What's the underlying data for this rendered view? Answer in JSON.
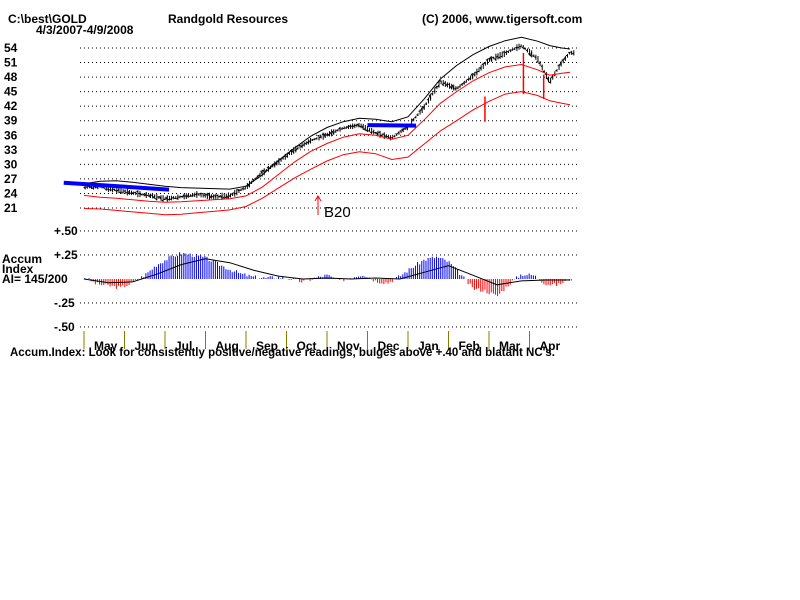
{
  "header": {
    "path": "C:\\best\\GOLD",
    "date_range": "4/3/2007-4/9/2008",
    "company": "Randgold Resources",
    "copyright": "(C) 2006, www.tigersoft.com"
  },
  "accum_label": {
    "line1": "Accum",
    "line2": "Index",
    "line3": "AI= 145/200"
  },
  "caption": "Accum.Index: Look for consistently positive/negative readings, bulges above +.40 and blatant NC's.",
  "colors": {
    "price_bar": "#000000",
    "band": "#ff0000",
    "trendline": "#0000ff",
    "accum_positive": "#0000ff",
    "accum_negative": "#ff0000",
    "grid": "#000000",
    "month_tick": "#808000"
  },
  "chart_data": [
    {
      "type": "line",
      "title": "Randgold Resources",
      "subtitle": "4/3/2007-4/9/2008",
      "xlabel": "",
      "ylabel": "",
      "x_ticks": [
        "May",
        "Jun",
        "Jul",
        "Aug",
        "Sep",
        "Oct",
        "Nov",
        "Dec",
        "Jan",
        "Feb",
        "Mar",
        "Apr"
      ],
      "y_ticks": [
        21,
        24,
        27,
        30,
        33,
        36,
        39,
        42,
        45,
        48,
        51,
        54
      ],
      "ylim": [
        21,
        55
      ],
      "grid": true,
      "annotation": {
        "label": "B20",
        "month": "Sep"
      },
      "series": [
        {
          "points": [
            [
              0.0,
              25.3
            ],
            [
              0.4,
              25.4
            ],
            [
              0.8,
              24.7
            ],
            [
              1.2,
              24.1
            ],
            [
              1.6,
              23.6
            ],
            [
              2.0,
              22.9
            ],
            [
              2.4,
              23.3
            ],
            [
              2.8,
              23.8
            ],
            [
              3.2,
              23.3
            ],
            [
              3.6,
              23.5
            ],
            [
              4.0,
              25.3
            ],
            [
              4.4,
              28.2
            ],
            [
              4.8,
              30.5
            ],
            [
              5.2,
              33.0
            ],
            [
              5.6,
              34.9
            ],
            [
              6.0,
              36.1
            ],
            [
              6.4,
              37.5
            ],
            [
              6.8,
              38.1
            ],
            [
              7.2,
              36.5
            ],
            [
              7.6,
              35.4
            ],
            [
              8.0,
              37.8
            ],
            [
              8.4,
              41.8
            ],
            [
              8.8,
              47.0
            ],
            [
              9.2,
              45.6
            ],
            [
              9.6,
              48.2
            ],
            [
              10.0,
              51.5
            ],
            [
              10.4,
              52.9
            ],
            [
              10.8,
              54.5
            ],
            [
              11.2,
              51.8
            ],
            [
              11.5,
              47.0
            ],
            [
              11.8,
              51.0
            ],
            [
              12.0,
              53.0
            ]
          ]
        },
        {
          "points": [
            [
              0.0,
              20.9
            ],
            [
              0.4,
              20.8
            ],
            [
              0.8,
              20.5
            ],
            [
              1.2,
              20.2
            ],
            [
              1.6,
              19.9
            ],
            [
              2.0,
              19.6
            ],
            [
              2.4,
              19.7
            ],
            [
              2.8,
              20.0
            ],
            [
              3.2,
              20.3
            ],
            [
              3.6,
              20.6
            ],
            [
              4.0,
              21.3
            ],
            [
              4.4,
              23.0
            ],
            [
              4.8,
              25.1
            ],
            [
              5.2,
              27.2
            ],
            [
              5.6,
              29.0
            ],
            [
              6.0,
              30.7
            ],
            [
              6.4,
              32.0
            ],
            [
              6.8,
              32.6
            ],
            [
              7.2,
              32.2
            ],
            [
              7.6,
              31.0
            ],
            [
              8.0,
              31.5
            ],
            [
              8.4,
              34.2
            ],
            [
              8.8,
              36.9
            ],
            [
              9.2,
              39.0
            ],
            [
              9.6,
              41.2
            ],
            [
              10.0,
              43.0
            ],
            [
              10.4,
              44.5
            ],
            [
              10.8,
              45.0
            ],
            [
              11.2,
              44.2
            ],
            [
              11.5,
              43.1
            ],
            [
              11.8,
              42.6
            ],
            [
              12.0,
              42.3
            ]
          ]
        },
        {
          "points": [
            [
              0.0,
              26.0
            ],
            [
              0.4,
              26.5
            ],
            [
              0.8,
              26.6
            ],
            [
              1.2,
              26.3
            ],
            [
              1.6,
              25.9
            ],
            [
              2.0,
              25.5
            ],
            [
              2.4,
              25.2
            ],
            [
              2.8,
              25.1
            ],
            [
              3.2,
              25.0
            ],
            [
              3.6,
              24.9
            ],
            [
              4.0,
              25.5
            ],
            [
              4.4,
              27.8
            ],
            [
              4.8,
              30.8
            ],
            [
              5.2,
              33.4
            ],
            [
              5.6,
              35.8
            ],
            [
              6.0,
              37.6
            ],
            [
              6.4,
              38.8
            ],
            [
              6.8,
              39.5
            ],
            [
              7.2,
              39.3
            ],
            [
              7.6,
              38.8
            ],
            [
              8.0,
              39.8
            ],
            [
              8.4,
              43.5
            ],
            [
              8.8,
              47.6
            ],
            [
              9.2,
              50.4
            ],
            [
              9.6,
              52.6
            ],
            [
              10.0,
              54.3
            ],
            [
              10.4,
              55.5
            ],
            [
              10.8,
              56.2
            ],
            [
              11.2,
              55.4
            ],
            [
              11.5,
              54.5
            ],
            [
              11.8,
              54.0
            ],
            [
              12.0,
              53.8
            ]
          ]
        },
        {
          "points": [
            [
              0.0,
              23.6
            ],
            [
              0.4,
              23.2
            ],
            [
              0.8,
              23.0
            ],
            [
              1.2,
              22.7
            ],
            [
              1.6,
              22.4
            ],
            [
              2.0,
              22.2
            ],
            [
              2.4,
              22.3
            ],
            [
              2.8,
              22.5
            ],
            [
              3.2,
              22.7
            ],
            [
              3.6,
              22.9
            ],
            [
              4.0,
              23.5
            ],
            [
              4.4,
              25.3
            ],
            [
              4.8,
              27.9
            ],
            [
              5.2,
              30.5
            ],
            [
              5.6,
              32.7
            ],
            [
              6.0,
              34.3
            ],
            [
              6.4,
              35.6
            ],
            [
              6.8,
              36.3
            ],
            [
              7.2,
              36.0
            ],
            [
              7.6,
              35.2
            ],
            [
              8.0,
              36.0
            ],
            [
              8.4,
              39.2
            ],
            [
              8.8,
              42.6
            ],
            [
              9.2,
              45.0
            ],
            [
              9.6,
              47.2
            ],
            [
              10.0,
              48.9
            ],
            [
              10.4,
              50.1
            ],
            [
              10.8,
              50.6
            ],
            [
              11.2,
              49.5
            ],
            [
              11.5,
              48.4
            ],
            [
              11.8,
              48.8
            ],
            [
              12.0,
              49.0
            ]
          ]
        },
        {
          "points": [
            [
              -0.5,
              26.2
            ],
            [
              2.1,
              24.8
            ]
          ]
        },
        {
          "points": [
            [
              7.0,
              38.1
            ],
            [
              8.2,
              38.0
            ]
          ]
        }
      ]
    },
    {
      "type": "area",
      "title": "Accum Index",
      "xlabel": "",
      "ylabel": "",
      "x_ticks": [
        "May",
        "Jun",
        "Jul",
        "Aug",
        "Sep",
        "Oct",
        "Nov",
        "Dec",
        "Jan",
        "Feb",
        "Mar",
        "Apr"
      ],
      "y_ticks": [
        "+.50",
        "+.25",
        "-.25",
        "-.50"
      ],
      "ylim": [
        -0.5,
        0.5
      ],
      "series": [
        {
          "name": "Accum",
          "points": [
            [
              0.0,
              0.02
            ],
            [
              0.3,
              -0.05
            ],
            [
              0.6,
              -0.07
            ],
            [
              0.9,
              -0.09
            ],
            [
              1.2,
              -0.04
            ],
            [
              1.5,
              0.04
            ],
            [
              1.8,
              0.15
            ],
            [
              2.1,
              0.22
            ],
            [
              2.4,
              0.27
            ],
            [
              2.7,
              0.25
            ],
            [
              3.0,
              0.22
            ],
            [
              3.3,
              0.16
            ],
            [
              3.6,
              0.1
            ],
            [
              3.9,
              0.05
            ],
            [
              4.2,
              0.02
            ],
            [
              4.5,
              0.01
            ],
            [
              4.8,
              0.02
            ],
            [
              5.1,
              0.0
            ],
            [
              5.4,
              -0.03
            ],
            [
              5.7,
              0.01
            ],
            [
              6.0,
              0.04
            ],
            [
              6.3,
              -0.02
            ],
            [
              6.6,
              0.02
            ],
            [
              6.9,
              0.05
            ],
            [
              7.2,
              -0.02
            ],
            [
              7.5,
              -0.04
            ],
            [
              7.8,
              0.03
            ],
            [
              8.1,
              0.12
            ],
            [
              8.4,
              0.2
            ],
            [
              8.7,
              0.23
            ],
            [
              9.0,
              0.18
            ],
            [
              9.3,
              0.05
            ],
            [
              9.6,
              -0.1
            ],
            [
              9.9,
              -0.12
            ],
            [
              10.2,
              -0.18
            ],
            [
              10.5,
              -0.05
            ],
            [
              10.8,
              0.05
            ],
            [
              11.1,
              0.04
            ],
            [
              11.4,
              -0.05
            ],
            [
              11.7,
              -0.06
            ],
            [
              12.0,
              0.0
            ]
          ]
        },
        {
          "name": "MA",
          "points": [
            [
              0.0,
              0.0
            ],
            [
              0.6,
              -0.04
            ],
            [
              1.2,
              -0.03
            ],
            [
              1.8,
              0.05
            ],
            [
              2.4,
              0.15
            ],
            [
              3.0,
              0.21
            ],
            [
              3.6,
              0.17
            ],
            [
              4.2,
              0.09
            ],
            [
              4.8,
              0.03
            ],
            [
              5.4,
              0.0
            ],
            [
              6.0,
              0.01
            ],
            [
              6.6,
              0.0
            ],
            [
              7.2,
              0.01
            ],
            [
              7.8,
              0.0
            ],
            [
              8.4,
              0.07
            ],
            [
              9.0,
              0.14
            ],
            [
              9.6,
              0.04
            ],
            [
              10.2,
              -0.06
            ],
            [
              10.8,
              -0.02
            ],
            [
              11.4,
              -0.01
            ],
            [
              12.0,
              -0.01
            ]
          ]
        }
      ]
    }
  ]
}
